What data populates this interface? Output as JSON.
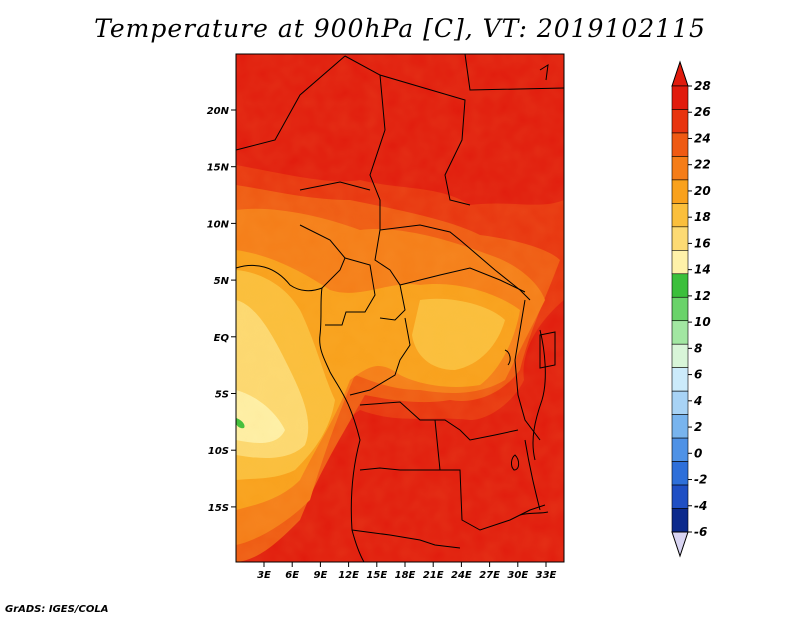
{
  "title": "Temperature at 900hPa [C], VT: 2019102115",
  "credit": "GrADS: IGES/COLA",
  "lat_ticks": [
    "20N",
    "15N",
    "10N",
    "5N",
    "EQ",
    "5S",
    "10S",
    "15S"
  ],
  "lon_ticks": [
    "3E",
    "6E",
    "9E",
    "12E",
    "15E",
    "18E",
    "21E",
    "24E",
    "27E",
    "30E",
    "33E"
  ],
  "colorbar": {
    "labels": [
      "28",
      "26",
      "24",
      "22",
      "20",
      "18",
      "16",
      "14",
      "12",
      "10",
      "8",
      "6",
      "4",
      "2",
      "0",
      "-2",
      "-4",
      "-6"
    ],
    "colors": [
      "#e11b0d",
      "#e8340f",
      "#ef5a13",
      "#f57d18",
      "#f9a11c",
      "#fbbf3c",
      "#fdda73",
      "#fef1a9",
      "#3bbf3b",
      "#6ad36a",
      "#a2e7a2",
      "#d8f5d8",
      "#ccebfb",
      "#a8d3f5",
      "#78b4ee",
      "#4f92e6",
      "#2e6fd9",
      "#1f4fc4",
      "#0c2a8c"
    ],
    "top_color": "#e11b0d",
    "bottom_color": "#d8d4f2"
  }
}
